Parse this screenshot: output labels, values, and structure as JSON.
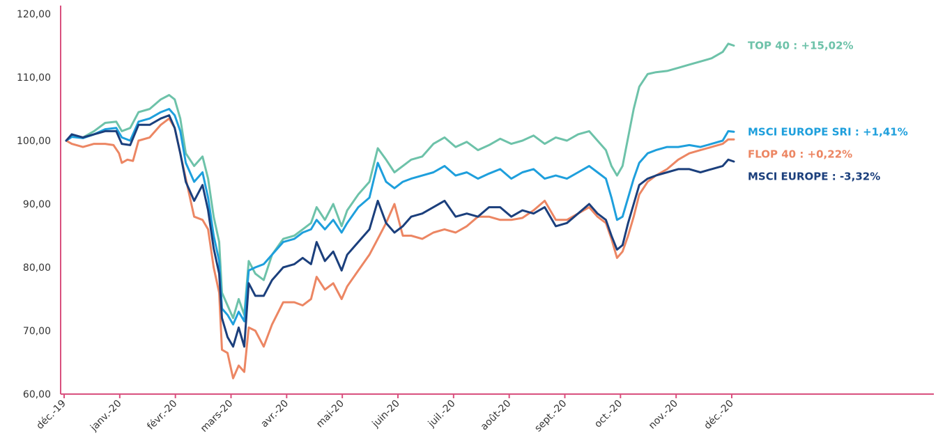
{
  "chart_data": {
    "type": "line",
    "x_ticks": [
      "déc.-19",
      "janv.-20",
      "févr.-20",
      "mars-20",
      "avr.-20",
      "mai-20",
      "juin-20",
      "juil.-20",
      "août-20",
      "sept.-20",
      "oct.-20",
      "nov.-20",
      "déc.-20"
    ],
    "x_range": [
      0,
      12
    ],
    "y_ticks": [
      "60,00",
      "70,00",
      "80,00",
      "90,00",
      "100,00",
      "110,00",
      "120,00"
    ],
    "ylim": [
      60,
      120
    ],
    "axis_color": "#d9507e",
    "series": [
      {
        "name": "TOP 40 : +15,02%",
        "color": "#6dc2a9",
        "points": [
          [
            0,
            100
          ],
          [
            0.1,
            100.6
          ],
          [
            0.3,
            100.5
          ],
          [
            0.5,
            101.5
          ],
          [
            0.7,
            102.8
          ],
          [
            0.9,
            103.0
          ],
          [
            1.0,
            101.5
          ],
          [
            1.15,
            102.0
          ],
          [
            1.3,
            104.5
          ],
          [
            1.5,
            105.0
          ],
          [
            1.7,
            106.5
          ],
          [
            1.85,
            107.2
          ],
          [
            1.95,
            106.5
          ],
          [
            2.05,
            103.5
          ],
          [
            2.15,
            98.0
          ],
          [
            2.3,
            96.0
          ],
          [
            2.45,
            97.5
          ],
          [
            2.55,
            94.0
          ],
          [
            2.65,
            88.0
          ],
          [
            2.75,
            84.0
          ],
          [
            2.8,
            76.0
          ],
          [
            2.9,
            74.0
          ],
          [
            3.0,
            72.0
          ],
          [
            3.1,
            75.0
          ],
          [
            3.2,
            72.5
          ],
          [
            3.28,
            81.0
          ],
          [
            3.4,
            79.0
          ],
          [
            3.55,
            78.0
          ],
          [
            3.7,
            82.0
          ],
          [
            3.9,
            84.5
          ],
          [
            4.1,
            85.0
          ],
          [
            4.25,
            86.0
          ],
          [
            4.4,
            87.0
          ],
          [
            4.5,
            89.5
          ],
          [
            4.65,
            87.5
          ],
          [
            4.8,
            90.0
          ],
          [
            4.95,
            86.5
          ],
          [
            5.05,
            89.0
          ],
          [
            5.25,
            91.5
          ],
          [
            5.45,
            93.5
          ],
          [
            5.6,
            98.8
          ],
          [
            5.75,
            97.0
          ],
          [
            5.9,
            95.0
          ],
          [
            6.05,
            96.0
          ],
          [
            6.2,
            97.0
          ],
          [
            6.4,
            97.5
          ],
          [
            6.6,
            99.5
          ],
          [
            6.8,
            100.5
          ],
          [
            7.0,
            99.0
          ],
          [
            7.2,
            99.8
          ],
          [
            7.4,
            98.5
          ],
          [
            7.6,
            99.3
          ],
          [
            7.8,
            100.3
          ],
          [
            8.0,
            99.5
          ],
          [
            8.2,
            100.0
          ],
          [
            8.4,
            100.8
          ],
          [
            8.6,
            99.5
          ],
          [
            8.8,
            100.5
          ],
          [
            9.0,
            100.0
          ],
          [
            9.2,
            101.0
          ],
          [
            9.4,
            101.5
          ],
          [
            9.55,
            100.0
          ],
          [
            9.7,
            98.5
          ],
          [
            9.8,
            96.0
          ],
          [
            9.9,
            94.5
          ],
          [
            10.0,
            96.0
          ],
          [
            10.1,
            100.5
          ],
          [
            10.2,
            105.0
          ],
          [
            10.3,
            108.5
          ],
          [
            10.45,
            110.5
          ],
          [
            10.6,
            110.8
          ],
          [
            10.8,
            111.0
          ],
          [
            11.0,
            111.5
          ],
          [
            11.2,
            112.0
          ],
          [
            11.4,
            112.5
          ],
          [
            11.6,
            113.0
          ],
          [
            11.8,
            114.0
          ],
          [
            11.9,
            115.3
          ],
          [
            12.0,
            115.0
          ]
        ]
      },
      {
        "name": "MSCI EUROPE SRI : +1,41%",
        "color": "#1e9fdc",
        "points": [
          [
            0,
            100
          ],
          [
            0.1,
            100.6
          ],
          [
            0.3,
            100.4
          ],
          [
            0.5,
            101.0
          ],
          [
            0.7,
            101.8
          ],
          [
            0.9,
            102.0
          ],
          [
            1.0,
            100.5
          ],
          [
            1.15,
            100.0
          ],
          [
            1.3,
            103.0
          ],
          [
            1.5,
            103.5
          ],
          [
            1.7,
            104.5
          ],
          [
            1.85,
            105.0
          ],
          [
            1.95,
            104.0
          ],
          [
            2.05,
            101.5
          ],
          [
            2.15,
            96.5
          ],
          [
            2.3,
            93.5
          ],
          [
            2.45,
            95.0
          ],
          [
            2.55,
            91.0
          ],
          [
            2.65,
            85.0
          ],
          [
            2.75,
            81.0
          ],
          [
            2.8,
            73.5
          ],
          [
            2.9,
            72.5
          ],
          [
            3.0,
            71.0
          ],
          [
            3.1,
            73.0
          ],
          [
            3.2,
            71.5
          ],
          [
            3.28,
            79.5
          ],
          [
            3.4,
            80.0
          ],
          [
            3.55,
            80.5
          ],
          [
            3.7,
            82.0
          ],
          [
            3.9,
            84.0
          ],
          [
            4.1,
            84.5
          ],
          [
            4.25,
            85.5
          ],
          [
            4.4,
            86.0
          ],
          [
            4.5,
            87.5
          ],
          [
            4.65,
            86.0
          ],
          [
            4.8,
            87.5
          ],
          [
            4.95,
            85.5
          ],
          [
            5.05,
            87.0
          ],
          [
            5.25,
            89.5
          ],
          [
            5.45,
            91.0
          ],
          [
            5.6,
            96.5
          ],
          [
            5.75,
            93.5
          ],
          [
            5.9,
            92.5
          ],
          [
            6.05,
            93.5
          ],
          [
            6.2,
            94.0
          ],
          [
            6.4,
            94.5
          ],
          [
            6.6,
            95.0
          ],
          [
            6.8,
            96.0
          ],
          [
            7.0,
            94.5
          ],
          [
            7.2,
            95.0
          ],
          [
            7.4,
            94.0
          ],
          [
            7.6,
            94.8
          ],
          [
            7.8,
            95.5
          ],
          [
            8.0,
            94.0
          ],
          [
            8.2,
            95.0
          ],
          [
            8.4,
            95.5
          ],
          [
            8.6,
            94.0
          ],
          [
            8.8,
            94.5
          ],
          [
            9.0,
            94.0
          ],
          [
            9.2,
            95.0
          ],
          [
            9.4,
            96.0
          ],
          [
            9.55,
            95.0
          ],
          [
            9.7,
            94.0
          ],
          [
            9.8,
            91.0
          ],
          [
            9.9,
            87.5
          ],
          [
            10.0,
            88.0
          ],
          [
            10.1,
            91.0
          ],
          [
            10.2,
            94.0
          ],
          [
            10.3,
            96.5
          ],
          [
            10.45,
            98.0
          ],
          [
            10.6,
            98.5
          ],
          [
            10.8,
            99.0
          ],
          [
            11.0,
            99.0
          ],
          [
            11.2,
            99.3
          ],
          [
            11.4,
            99.0
          ],
          [
            11.6,
            99.5
          ],
          [
            11.8,
            100.0
          ],
          [
            11.9,
            101.5
          ],
          [
            12.0,
            101.4
          ]
        ]
      },
      {
        "name": "FLOP 40 : +0,22%",
        "color": "#ec8663",
        "points": [
          [
            0,
            100
          ],
          [
            0.1,
            99.5
          ],
          [
            0.3,
            99.0
          ],
          [
            0.5,
            99.5
          ],
          [
            0.7,
            99.5
          ],
          [
            0.85,
            99.3
          ],
          [
            0.95,
            98.0
          ],
          [
            1.0,
            96.5
          ],
          [
            1.1,
            97.0
          ],
          [
            1.2,
            96.8
          ],
          [
            1.3,
            100.0
          ],
          [
            1.5,
            100.5
          ],
          [
            1.7,
            102.5
          ],
          [
            1.85,
            103.5
          ],
          [
            1.95,
            102.0
          ],
          [
            2.05,
            98.0
          ],
          [
            2.15,
            94.0
          ],
          [
            2.3,
            88.0
          ],
          [
            2.45,
            87.5
          ],
          [
            2.55,
            86.0
          ],
          [
            2.65,
            80.0
          ],
          [
            2.75,
            76.0
          ],
          [
            2.8,
            67.0
          ],
          [
            2.9,
            66.5
          ],
          [
            3.0,
            62.5
          ],
          [
            3.1,
            64.5
          ],
          [
            3.2,
            63.5
          ],
          [
            3.28,
            70.5
          ],
          [
            3.4,
            70.0
          ],
          [
            3.55,
            67.5
          ],
          [
            3.7,
            71.0
          ],
          [
            3.9,
            74.5
          ],
          [
            4.1,
            74.5
          ],
          [
            4.25,
            74.0
          ],
          [
            4.4,
            75.0
          ],
          [
            4.5,
            78.5
          ],
          [
            4.65,
            76.5
          ],
          [
            4.8,
            77.5
          ],
          [
            4.95,
            75.0
          ],
          [
            5.05,
            77.0
          ],
          [
            5.25,
            79.5
          ],
          [
            5.45,
            82.0
          ],
          [
            5.6,
            84.5
          ],
          [
            5.75,
            87.0
          ],
          [
            5.9,
            90.0
          ],
          [
            6.05,
            85.0
          ],
          [
            6.2,
            85.0
          ],
          [
            6.4,
            84.5
          ],
          [
            6.6,
            85.5
          ],
          [
            6.8,
            86.0
          ],
          [
            7.0,
            85.5
          ],
          [
            7.2,
            86.5
          ],
          [
            7.4,
            88.0
          ],
          [
            7.6,
            88.0
          ],
          [
            7.8,
            87.5
          ],
          [
            8.0,
            87.5
          ],
          [
            8.2,
            87.8
          ],
          [
            8.4,
            89.0
          ],
          [
            8.6,
            90.5
          ],
          [
            8.8,
            87.5
          ],
          [
            9.0,
            87.5
          ],
          [
            9.2,
            88.5
          ],
          [
            9.4,
            89.5
          ],
          [
            9.55,
            88.0
          ],
          [
            9.7,
            87.0
          ],
          [
            9.8,
            84.5
          ],
          [
            9.9,
            81.5
          ],
          [
            10.0,
            82.5
          ],
          [
            10.1,
            85.0
          ],
          [
            10.2,
            88.0
          ],
          [
            10.3,
            91.5
          ],
          [
            10.45,
            93.5
          ],
          [
            10.6,
            94.5
          ],
          [
            10.8,
            95.5
          ],
          [
            11.0,
            97.0
          ],
          [
            11.2,
            98.0
          ],
          [
            11.4,
            98.5
          ],
          [
            11.6,
            99.0
          ],
          [
            11.8,
            99.5
          ],
          [
            11.9,
            100.2
          ],
          [
            12.0,
            100.2
          ]
        ]
      },
      {
        "name": "MSCI EUROPE : -3,32%",
        "color": "#1b3f7c",
        "points": [
          [
            0,
            100
          ],
          [
            0.1,
            101.0
          ],
          [
            0.3,
            100.5
          ],
          [
            0.5,
            101.0
          ],
          [
            0.7,
            101.5
          ],
          [
            0.9,
            101.5
          ],
          [
            1.0,
            99.5
          ],
          [
            1.15,
            99.3
          ],
          [
            1.3,
            102.5
          ],
          [
            1.5,
            102.5
          ],
          [
            1.7,
            103.5
          ],
          [
            1.85,
            104.0
          ],
          [
            1.95,
            102.0
          ],
          [
            2.05,
            98.0
          ],
          [
            2.15,
            93.5
          ],
          [
            2.3,
            90.5
          ],
          [
            2.45,
            93.0
          ],
          [
            2.55,
            89.0
          ],
          [
            2.65,
            83.0
          ],
          [
            2.75,
            79.0
          ],
          [
            2.8,
            72.0
          ],
          [
            2.9,
            69.0
          ],
          [
            3.0,
            67.5
          ],
          [
            3.1,
            70.5
          ],
          [
            3.2,
            67.5
          ],
          [
            3.28,
            77.5
          ],
          [
            3.4,
            75.5
          ],
          [
            3.55,
            75.5
          ],
          [
            3.7,
            78.0
          ],
          [
            3.9,
            80.0
          ],
          [
            4.1,
            80.5
          ],
          [
            4.25,
            81.5
          ],
          [
            4.4,
            80.5
          ],
          [
            4.5,
            84.0
          ],
          [
            4.65,
            81.0
          ],
          [
            4.8,
            82.5
          ],
          [
            4.95,
            79.5
          ],
          [
            5.05,
            82.0
          ],
          [
            5.25,
            84.0
          ],
          [
            5.45,
            86.0
          ],
          [
            5.6,
            90.5
          ],
          [
            5.75,
            87.0
          ],
          [
            5.9,
            85.5
          ],
          [
            6.05,
            86.5
          ],
          [
            6.2,
            88.0
          ],
          [
            6.4,
            88.5
          ],
          [
            6.6,
            89.5
          ],
          [
            6.8,
            90.5
          ],
          [
            7.0,
            88.0
          ],
          [
            7.2,
            88.5
          ],
          [
            7.4,
            88.0
          ],
          [
            7.6,
            89.5
          ],
          [
            7.8,
            89.5
          ],
          [
            8.0,
            88.0
          ],
          [
            8.2,
            89.0
          ],
          [
            8.4,
            88.5
          ],
          [
            8.6,
            89.5
          ],
          [
            8.8,
            86.5
          ],
          [
            9.0,
            87.0
          ],
          [
            9.2,
            88.5
          ],
          [
            9.4,
            90.0
          ],
          [
            9.55,
            88.5
          ],
          [
            9.7,
            87.5
          ],
          [
            9.8,
            85.0
          ],
          [
            9.9,
            82.8
          ],
          [
            10.0,
            83.5
          ],
          [
            10.1,
            87.0
          ],
          [
            10.2,
            90.0
          ],
          [
            10.3,
            93.0
          ],
          [
            10.45,
            94.0
          ],
          [
            10.6,
            94.5
          ],
          [
            10.8,
            95.0
          ],
          [
            11.0,
            95.5
          ],
          [
            11.2,
            95.5
          ],
          [
            11.4,
            95.0
          ],
          [
            11.6,
            95.5
          ],
          [
            11.8,
            96.0
          ],
          [
            11.9,
            97.0
          ],
          [
            12.0,
            96.7
          ]
        ]
      }
    ]
  }
}
